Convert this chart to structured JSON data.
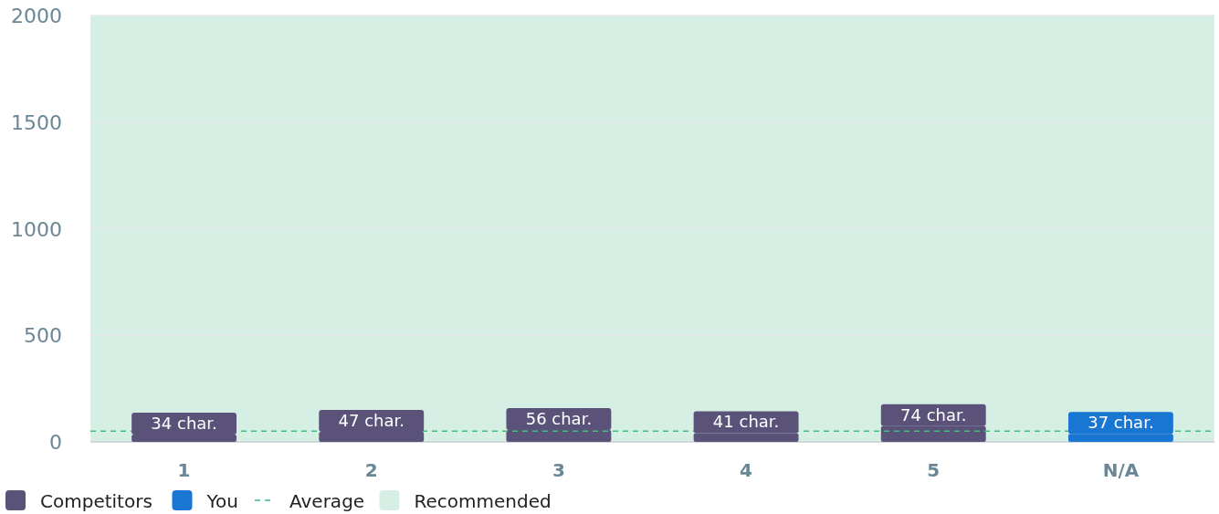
{
  "chart_data": {
    "type": "bar",
    "categories": [
      "1",
      "2",
      "3",
      "4",
      "5",
      "N/A"
    ],
    "series": [
      {
        "name": "Competitors",
        "color": "#5b5279",
        "values": [
          34,
          47,
          56,
          41,
          74,
          null
        ],
        "value_labels": [
          "34 char.",
          "47 char.",
          "56 char.",
          "41 char.",
          "74 char.",
          null
        ]
      },
      {
        "name": "You",
        "color": "#1976d2",
        "values": [
          null,
          null,
          null,
          null,
          null,
          37
        ],
        "value_labels": [
          null,
          null,
          null,
          null,
          null,
          "37 char."
        ]
      }
    ],
    "ylim": [
      0,
      2000
    ],
    "yticks": [
      0,
      500,
      1000,
      1500,
      2000
    ],
    "grid": "y",
    "legend": "bottom",
    "ref_lines": [
      {
        "axis": "y",
        "value": 50,
        "label": "Average",
        "color": "#3dbf7f",
        "line_style": "dashed"
      }
    ],
    "bands": [
      {
        "axis": "y",
        "from": 0,
        "to": 2000,
        "label": "Recommended",
        "color": "#d6efe5"
      }
    ]
  }
}
